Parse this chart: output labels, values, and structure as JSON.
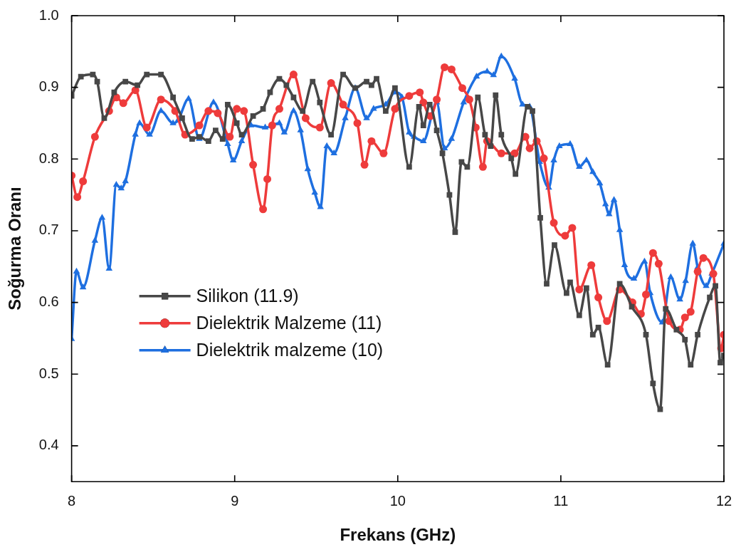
{
  "chart_data": {
    "type": "line",
    "xlabel": "Frekans (GHz)",
    "ylabel": "Soğurma Oranı",
    "xlim": [
      8,
      12
    ],
    "ylim": [
      0.35,
      1
    ],
    "xticks": [
      8,
      9,
      10,
      11,
      12
    ],
    "yticks": [
      0.4,
      0.5,
      0.6,
      0.7,
      0.8,
      0.9,
      {
        "value": 1,
        "label": "1.0"
      }
    ],
    "grid": false,
    "legend": "left",
    "line_style": "solid",
    "series": [
      {
        "name": "Silikon (11.9)",
        "color": "#474747",
        "marker": "square",
        "x": [
          8.0,
          8.057,
          8.13,
          8.157,
          8.2,
          8.261,
          8.33,
          8.404,
          8.461,
          8.548,
          8.622,
          8.678,
          8.739,
          8.783,
          8.839,
          8.883,
          8.926,
          8.957,
          9.013,
          9.043,
          9.113,
          9.174,
          9.217,
          9.274,
          9.317,
          9.361,
          9.417,
          9.478,
          9.522,
          9.591,
          9.665,
          9.739,
          9.809,
          9.839,
          9.87,
          9.926,
          9.983,
          10.07,
          10.13,
          10.157,
          10.196,
          10.239,
          10.274,
          10.317,
          10.352,
          10.391,
          10.426,
          10.491,
          10.535,
          10.57,
          10.6,
          10.635,
          10.696,
          10.722,
          10.796,
          10.826,
          10.874,
          10.913,
          10.961,
          11.035,
          11.057,
          11.113,
          11.157,
          11.196,
          11.23,
          11.287,
          11.361,
          11.435,
          11.522,
          11.565,
          11.609,
          11.643,
          11.709,
          11.761,
          11.796,
          11.839,
          11.913,
          11.948,
          11.978,
          12.0
        ],
        "values": [
          0.888,
          0.915,
          0.918,
          0.908,
          0.857,
          0.893,
          0.908,
          0.903,
          0.918,
          0.918,
          0.886,
          0.857,
          0.828,
          0.831,
          0.825,
          0.84,
          0.828,
          0.876,
          0.85,
          0.834,
          0.86,
          0.87,
          0.893,
          0.912,
          0.903,
          0.886,
          0.867,
          0.908,
          0.879,
          0.834,
          0.918,
          0.899,
          0.908,
          0.903,
          0.912,
          0.867,
          0.899,
          0.789,
          0.873,
          0.847,
          0.876,
          0.84,
          0.808,
          0.75,
          0.698,
          0.796,
          0.789,
          0.886,
          0.834,
          0.818,
          0.889,
          0.834,
          0.801,
          0.779,
          0.873,
          0.867,
          0.718,
          0.626,
          0.68,
          0.613,
          0.628,
          0.582,
          0.62,
          0.555,
          0.565,
          0.513,
          0.626,
          0.594,
          0.555,
          0.487,
          0.451,
          0.591,
          0.562,
          0.548,
          0.513,
          0.555,
          0.607,
          0.623,
          0.516,
          0.526
        ]
      },
      {
        "name": "Dielektrik Malzeme (11)",
        "color": "#ee3b3b",
        "marker": "circle",
        "x": [
          8.0,
          8.035,
          8.07,
          8.143,
          8.23,
          8.274,
          8.317,
          8.391,
          8.461,
          8.548,
          8.635,
          8.696,
          8.783,
          8.839,
          8.896,
          8.97,
          9.013,
          9.057,
          9.113,
          9.174,
          9.2,
          9.23,
          9.274,
          9.361,
          9.435,
          9.522,
          9.591,
          9.665,
          9.752,
          9.796,
          9.839,
          9.913,
          9.983,
          10.07,
          10.135,
          10.157,
          10.2,
          10.239,
          10.287,
          10.33,
          10.396,
          10.439,
          10.478,
          10.522,
          10.548,
          10.635,
          10.717,
          10.783,
          10.809,
          10.852,
          10.896,
          10.957,
          11.026,
          11.07,
          11.113,
          11.187,
          11.23,
          11.283,
          11.361,
          11.439,
          11.491,
          11.522,
          11.565,
          11.6,
          11.665,
          11.73,
          11.761,
          11.796,
          11.839,
          11.874,
          11.935,
          11.983,
          12.0
        ],
        "values": [
          0.777,
          0.747,
          0.769,
          0.831,
          0.867,
          0.886,
          0.878,
          0.896,
          0.844,
          0.883,
          0.867,
          0.834,
          0.847,
          0.867,
          0.864,
          0.831,
          0.87,
          0.867,
          0.792,
          0.73,
          0.772,
          0.847,
          0.87,
          0.918,
          0.857,
          0.844,
          0.906,
          0.876,
          0.85,
          0.792,
          0.825,
          0.808,
          0.87,
          0.888,
          0.893,
          0.879,
          0.86,
          0.883,
          0.928,
          0.925,
          0.899,
          0.883,
          0.844,
          0.789,
          0.825,
          0.808,
          0.808,
          0.831,
          0.815,
          0.825,
          0.801,
          0.711,
          0.693,
          0.704,
          0.618,
          0.652,
          0.607,
          0.574,
          0.618,
          0.6,
          0.584,
          0.611,
          0.669,
          0.654,
          0.574,
          0.562,
          0.579,
          0.587,
          0.643,
          0.662,
          0.64,
          0.536,
          0.555
        ]
      },
      {
        "name": "Dielektrik malzeme (10)",
        "color": "#1e6fe0",
        "marker": "triangle",
        "x": [
          8.0,
          8.03,
          8.07,
          8.143,
          8.187,
          8.23,
          8.274,
          8.304,
          8.33,
          8.391,
          8.417,
          8.478,
          8.548,
          8.622,
          8.652,
          8.717,
          8.783,
          8.87,
          8.957,
          8.991,
          9.043,
          9.1,
          9.187,
          9.274,
          9.304,
          9.361,
          9.404,
          9.448,
          9.491,
          9.526,
          9.565,
          9.609,
          9.678,
          9.739,
          9.809,
          9.852,
          9.926,
          9.983,
          10.026,
          10.07,
          10.1,
          10.157,
          10.239,
          10.287,
          10.33,
          10.404,
          10.483,
          10.548,
          10.587,
          10.635,
          10.717,
          10.765,
          10.809,
          10.87,
          10.926,
          10.957,
          10.991,
          11.057,
          11.113,
          11.157,
          11.196,
          11.239,
          11.274,
          11.296,
          11.326,
          11.361,
          11.391,
          11.448,
          11.513,
          11.548,
          11.622,
          11.674,
          11.73,
          11.765,
          11.809,
          11.839,
          11.891,
          11.926,
          12.0
        ],
        "values": [
          0.549,
          0.643,
          0.621,
          0.686,
          0.718,
          0.647,
          0.764,
          0.759,
          0.769,
          0.834,
          0.85,
          0.834,
          0.867,
          0.85,
          0.854,
          0.884,
          0.828,
          0.879,
          0.821,
          0.798,
          0.825,
          0.847,
          0.844,
          0.85,
          0.837,
          0.867,
          0.84,
          0.786,
          0.753,
          0.733,
          0.818,
          0.808,
          0.857,
          0.899,
          0.857,
          0.87,
          0.876,
          0.893,
          0.886,
          0.837,
          0.831,
          0.825,
          0.879,
          0.815,
          0.828,
          0.879,
          0.915,
          0.922,
          0.917,
          0.943,
          0.912,
          0.876,
          0.873,
          0.796,
          0.76,
          0.798,
          0.818,
          0.821,
          0.789,
          0.798,
          0.782,
          0.766,
          0.737,
          0.723,
          0.743,
          0.701,
          0.652,
          0.633,
          0.657,
          0.613,
          0.572,
          0.635,
          0.604,
          0.63,
          0.682,
          0.649,
          0.623,
          0.64,
          0.682
        ]
      }
    ]
  }
}
